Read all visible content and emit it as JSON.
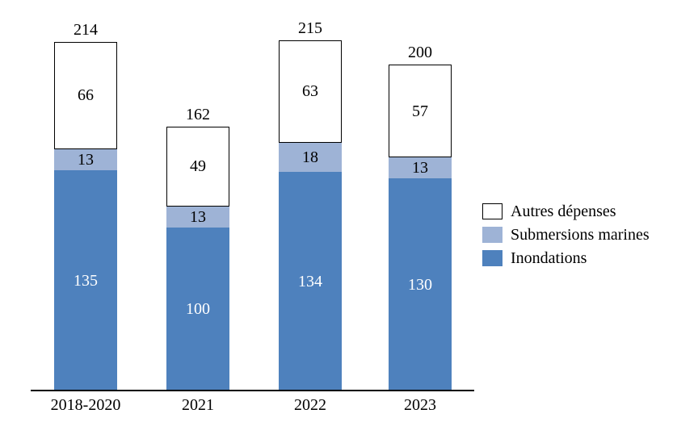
{
  "chart_data": {
    "type": "bar",
    "stacked": true,
    "title": "",
    "xlabel": "",
    "ylabel": "",
    "categories": [
      "2018-2020",
      "2021",
      "2022",
      "2023"
    ],
    "series": [
      {
        "name": "Inondations",
        "color": "#4E81BD",
        "label_color": "#FFFFFF",
        "values": [
          135,
          100,
          134,
          130
        ]
      },
      {
        "name": "Submersions marines",
        "color": "#9EB3D6",
        "label_color": "#000000",
        "values": [
          13,
          13,
          18,
          13
        ]
      },
      {
        "name": "Autres dépenses",
        "color": "#FFFFFF",
        "border_color": "#000000",
        "label_color": "#000000",
        "values": [
          66,
          49,
          63,
          57
        ]
      }
    ],
    "totals": [
      214,
      162,
      215,
      200
    ],
    "legend": {
      "position": "right",
      "order_top_to_bottom": [
        "Autres dépenses",
        "Submersions marines",
        "Inondations"
      ]
    },
    "axes": {
      "x_ticks": [
        "2018-2020",
        "2021",
        "2022",
        "2023"
      ],
      "y_axis_visible": false,
      "gridlines": false,
      "ylim": [
        0,
        230
      ]
    }
  }
}
